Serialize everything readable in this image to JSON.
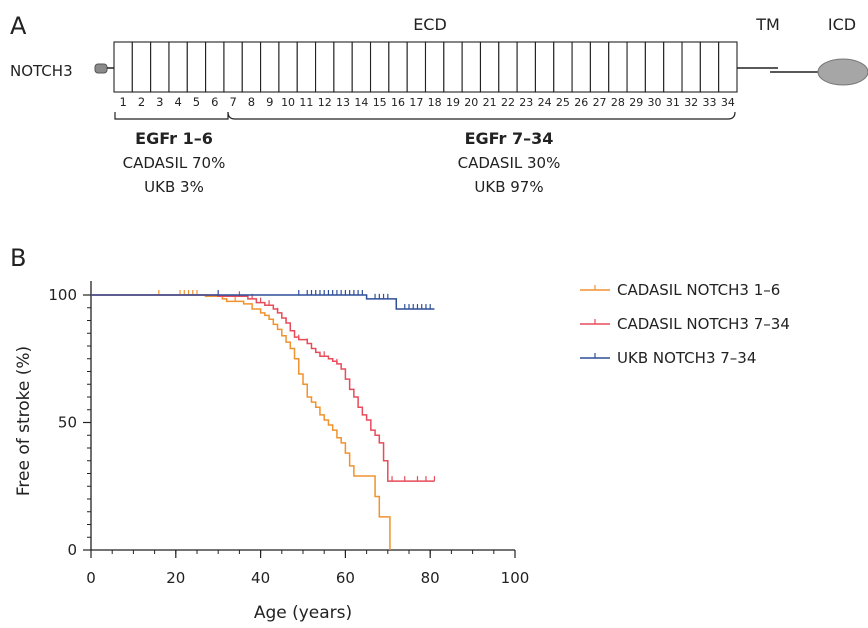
{
  "panel_a": {
    "panel_letter": "A",
    "gene_label": "NOTCH3",
    "ecd_label": "ECD",
    "tm_label": "TM",
    "icd_label": "ICD",
    "egf_repeats": [
      "1",
      "2",
      "3",
      "4",
      "5",
      "6",
      "7",
      "8",
      "9",
      "10",
      "11",
      "12",
      "13",
      "14",
      "15",
      "16",
      "17",
      "18",
      "19",
      "20",
      "21",
      "22",
      "23",
      "24",
      "25",
      "26",
      "27",
      "28",
      "29",
      "30",
      "31",
      "32",
      "33",
      "34"
    ],
    "group1": {
      "title": "EGFr 1–6",
      "line1": "CADASIL 70%",
      "line2": "UKB 3%"
    },
    "group2": {
      "title": "EGFr 7–34",
      "line1": "CADASIL 30%",
      "line2": "UKB 97%"
    }
  },
  "panel_b": {
    "panel_letter": "B"
  },
  "chart_data": {
    "type": "line",
    "subtype": "kaplan-meier step curve",
    "xlabel": "Age (years)",
    "ylabel": "Free of stroke (%)",
    "xlim": [
      0,
      100
    ],
    "ylim": [
      0,
      100
    ],
    "xticks": [
      0,
      20,
      40,
      60,
      80,
      100
    ],
    "yticks": [
      0,
      50,
      100
    ],
    "grid": false,
    "legend_position": "top-right",
    "series": [
      {
        "name": "CADASIL NOTCH3 1–6",
        "color": "#f0922e",
        "steps": [
          [
            0,
            100
          ],
          [
            27,
            99.5
          ],
          [
            31,
            98.5
          ],
          [
            32,
            97.5
          ],
          [
            36,
            96.5
          ],
          [
            38,
            94.5
          ],
          [
            40,
            93
          ],
          [
            41,
            92
          ],
          [
            42,
            90.5
          ],
          [
            43,
            88.5
          ],
          [
            44,
            86.5
          ],
          [
            45,
            84
          ],
          [
            46,
            81.5
          ],
          [
            47,
            79
          ],
          [
            48,
            75
          ],
          [
            49,
            69
          ],
          [
            50,
            65
          ],
          [
            51,
            60
          ],
          [
            52,
            58
          ],
          [
            53,
            56
          ],
          [
            54,
            53
          ],
          [
            55,
            51
          ],
          [
            56,
            49
          ],
          [
            57,
            47
          ],
          [
            58,
            44
          ],
          [
            59,
            42
          ],
          [
            60,
            38
          ],
          [
            61,
            33
          ],
          [
            62,
            29
          ],
          [
            66,
            29
          ],
          [
            67,
            21
          ],
          [
            68,
            13
          ],
          [
            70,
            13
          ],
          [
            70.5,
            0
          ]
        ],
        "censor_x": [
          16,
          21,
          22,
          23,
          24,
          25,
          34,
          60
        ],
        "end_x": 70.5
      },
      {
        "name": "CADASIL NOTCH3 7–34",
        "color": "#e84b5a",
        "steps": [
          [
            0,
            100
          ],
          [
            30,
            99.5
          ],
          [
            37,
            98.5
          ],
          [
            39,
            97
          ],
          [
            41,
            96
          ],
          [
            43,
            94.5
          ],
          [
            44,
            93
          ],
          [
            45,
            91
          ],
          [
            46,
            89
          ],
          [
            47,
            86
          ],
          [
            48,
            83.5
          ],
          [
            49,
            82.5
          ],
          [
            51,
            81
          ],
          [
            52,
            79
          ],
          [
            53,
            77.5
          ],
          [
            54,
            76
          ],
          [
            56,
            75
          ],
          [
            57,
            74
          ],
          [
            58,
            73
          ],
          [
            59,
            71
          ],
          [
            60,
            67
          ],
          [
            61,
            63
          ],
          [
            62,
            60
          ],
          [
            63,
            56
          ],
          [
            64,
            53
          ],
          [
            65,
            51
          ],
          [
            66,
            47
          ],
          [
            67,
            45
          ],
          [
            68,
            42
          ],
          [
            69,
            35
          ],
          [
            70,
            27
          ],
          [
            81,
            27
          ]
        ],
        "censor_x": [
          35,
          38,
          40,
          42,
          44,
          46,
          49,
          51,
          55,
          58,
          68,
          71,
          74,
          77,
          79,
          81
        ],
        "end_x": 81
      },
      {
        "name": "UKB NOTCH3 7–34",
        "color": "#2e4f99",
        "steps": [
          [
            0,
            100
          ],
          [
            65,
            98.5
          ],
          [
            72,
            94.5
          ],
          [
            81,
            94.5
          ]
        ],
        "censor_x": [
          30,
          49,
          51,
          52,
          53,
          54,
          55,
          56,
          57,
          58,
          59,
          60,
          61,
          62,
          63,
          64,
          67,
          68,
          69,
          70,
          74,
          75,
          76,
          77,
          78,
          79,
          80
        ],
        "end_x": 81
      }
    ]
  }
}
